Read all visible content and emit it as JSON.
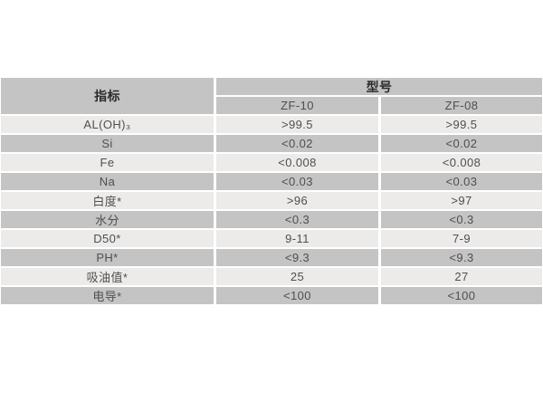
{
  "colors": {
    "background": "#ffffff",
    "row_gray": "#c4c4c5",
    "row_light": "#ecebe9",
    "header_text": "#2b2b2b",
    "cell_text": "#4f4f4f"
  },
  "table": {
    "indicator_header": "指标",
    "model_header": "型号",
    "model_columns": [
      "ZF-10",
      "ZF-08"
    ],
    "rows": [
      {
        "label": "AL(OH)₃",
        "values": [
          ">99.5",
          ">99.5"
        ]
      },
      {
        "label": "Si",
        "values": [
          "<0.02",
          "<0.02"
        ]
      },
      {
        "label": "Fe",
        "values": [
          "<0.008",
          "<0.008"
        ]
      },
      {
        "label": "Na",
        "values": [
          "<0.03",
          "<0.03"
        ]
      },
      {
        "label": "白度*",
        "values": [
          ">96",
          ">97"
        ]
      },
      {
        "label": "水分",
        "values": [
          "<0.3",
          "<0.3"
        ]
      },
      {
        "label": "D50*",
        "values": [
          "9-11",
          "7-9"
        ]
      },
      {
        "label": "PH*",
        "values": [
          "<9.3",
          "<9.3"
        ]
      },
      {
        "label": "吸油值*",
        "values": [
          "25",
          "27"
        ]
      },
      {
        "label": "电导*",
        "values": [
          "<100",
          "<100"
        ]
      }
    ]
  }
}
